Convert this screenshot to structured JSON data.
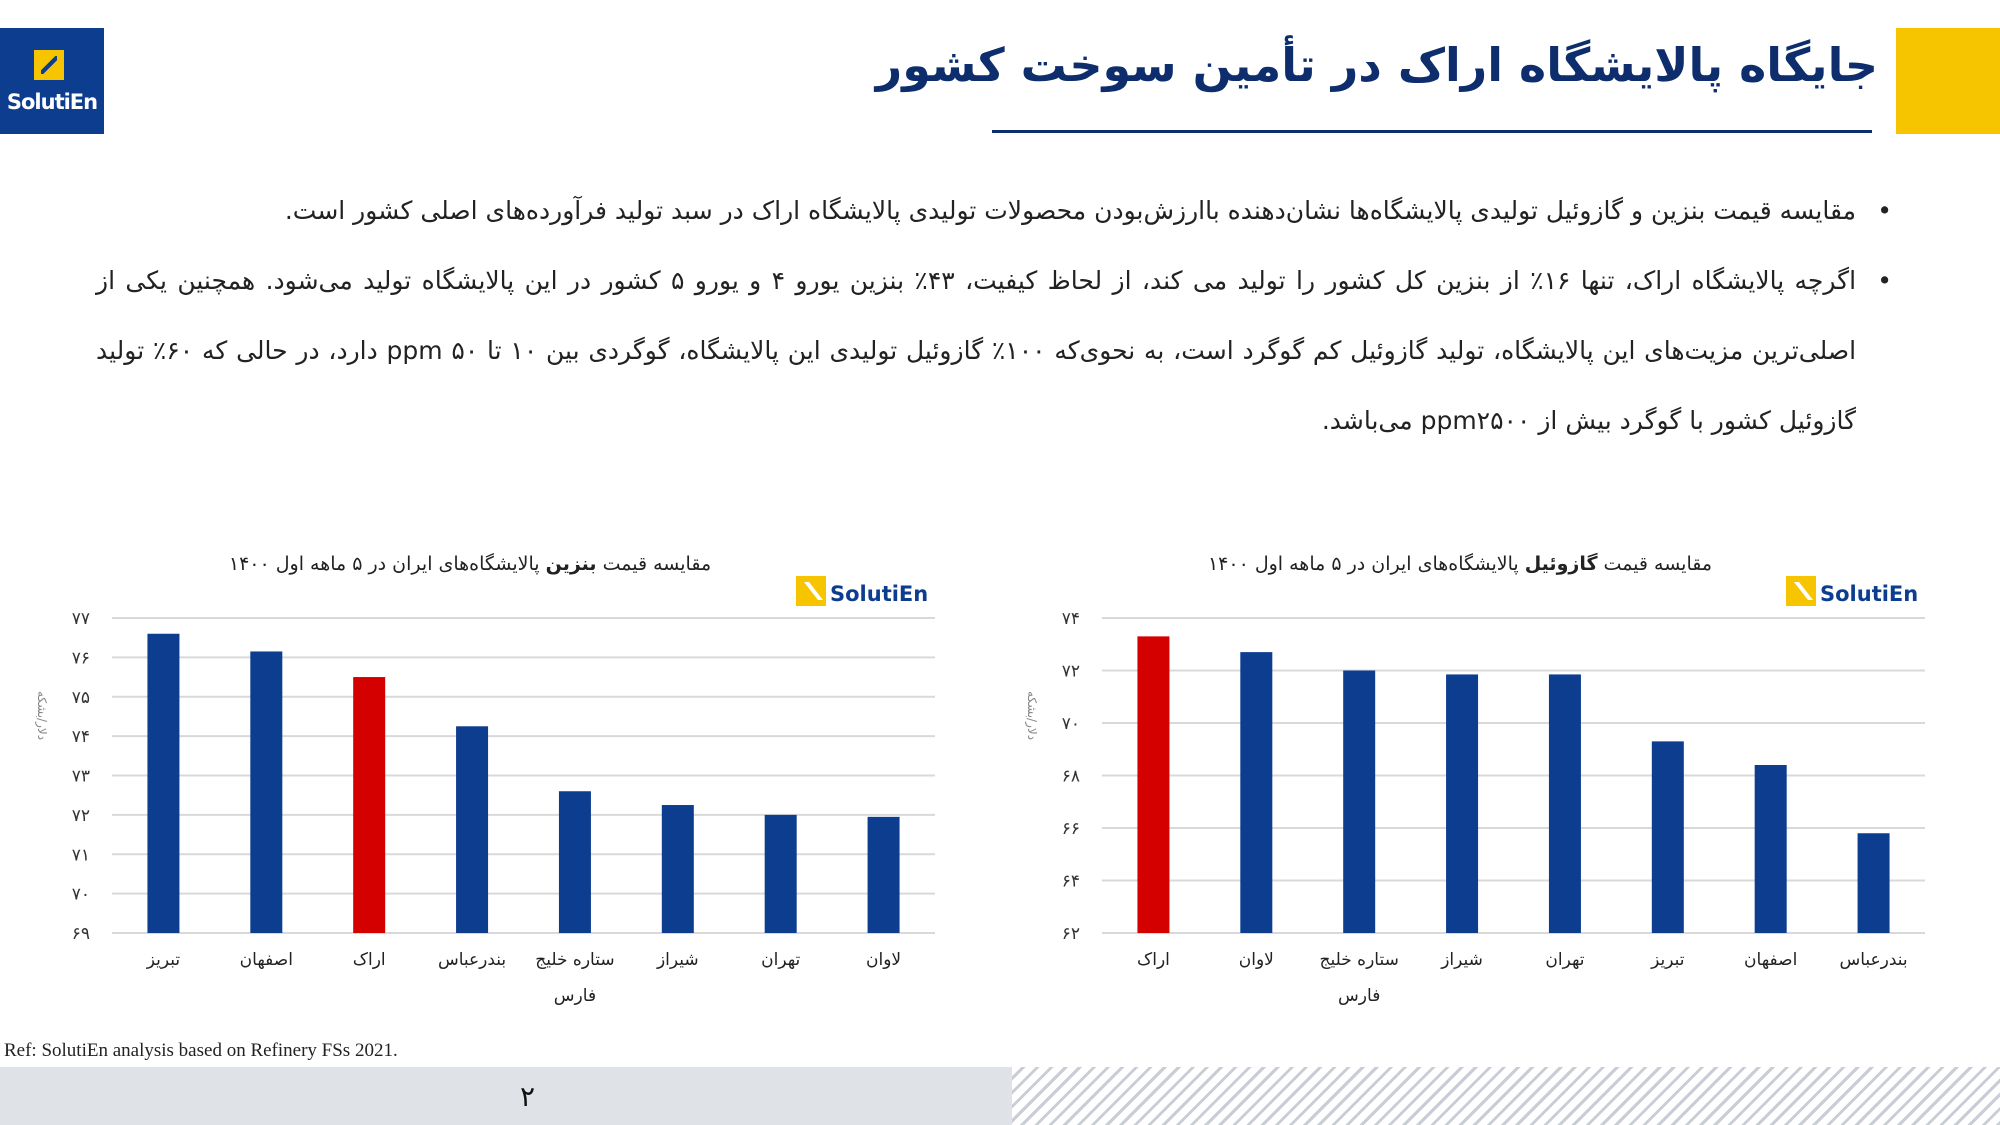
{
  "header": {
    "title": "جایگاه پالایشگاه اراک در تأمین سوخت کشور",
    "logo_text": "SolutiEn",
    "colors": {
      "navy": "#0d2d6c",
      "brand_blue": "#0d3d8f",
      "yellow": "#f7c500",
      "bar_blue": "#0d3d8f",
      "bar_red": "#d40000"
    }
  },
  "bullets": [
    "مقایسه قیمت بنزین و گازوئیل تولیدی پالایشگاه‌ها نشان‌دهنده باارزش‌بودن محصولات تولیدی پالایشگاه اراک در سبد تولید فرآورده‌های اصلی کشور است.",
    "اگرچه پالایشگاه اراک، تنها ۱۶٪ از بنزین کل کشور را تولید می کند، از لحاظ کیفیت، ۴۳٪ بنزین یورو ۴ و یورو ۵ کشور در این پالایشگاه تولید می‌شود. همچنین یکی از اصلی‌ترین مزیت‌های این پالایشگاه، تولید گازوئیل کم گوگرد است، به نحوی‌که ۱۰۰٪ گازوئیل تولیدی این پالایشگاه، گوگردی بین ۱۰ تا ۵۰ ppm دارد، در حالی که ۶۰٪ تولید گازوئیل کشور با گوگرد بیش از ppm۲۵۰۰ می‌باشد."
  ],
  "chart_data": [
    {
      "type": "bar",
      "title_pre": "مقایسه قیمت ",
      "title_bold": "بنزین",
      "title_post": " پالایشگاه‌های ایران در ۵ ماهه اول ۱۴۰۰",
      "ylabel": "دلار/بشکه",
      "logo": "SolutiEn",
      "categories": [
        "تبریز",
        "اصفهان",
        "اراک",
        "بندرعباس",
        "ستاره خلیج فارس",
        "شیراز",
        "تهران",
        "لاوان"
      ],
      "values": [
        76.6,
        76.15,
        75.5,
        74.25,
        72.6,
        72.25,
        72.0,
        71.95
      ],
      "highlight": "اراک",
      "ylim": [
        69,
        77
      ],
      "yticks": [
        69,
        70,
        71,
        72,
        73,
        74,
        75,
        76,
        77
      ],
      "ytick_labels": [
        "۶۹",
        "۷۰",
        "۷۱",
        "۷۲",
        "۷۳",
        "۷۴",
        "۷۵",
        "۷۶",
        "۷۷"
      ],
      "grid": true
    },
    {
      "type": "bar",
      "title_pre": "مقایسه قیمت ",
      "title_bold": "گازوئیل",
      "title_post": " پالایشگاه‌های ایران در ۵ ماهه اول ۱۴۰۰",
      "ylabel": "دلار/بشکه",
      "logo": "SolutiEn",
      "categories": [
        "اراک",
        "لاوان",
        "ستاره خلیج فارس",
        "شیراز",
        "تهران",
        "تبریز",
        "اصفهان",
        "بندرعباس"
      ],
      "values": [
        73.3,
        72.7,
        72.0,
        71.85,
        71.85,
        69.3,
        68.4,
        65.8
      ],
      "highlight": "اراک",
      "ylim": [
        62,
        74
      ],
      "yticks": [
        62,
        64,
        66,
        68,
        70,
        72,
        74
      ],
      "ytick_labels": [
        "۶۲",
        "۶۴",
        "۶۶",
        "۶۸",
        "۷۰",
        "۷۲",
        "۷۴"
      ],
      "grid": true
    }
  ],
  "footer": {
    "ref": "Ref: SolutiEn analysis based on Refinery FSs 2021.",
    "page_number": "۲"
  }
}
